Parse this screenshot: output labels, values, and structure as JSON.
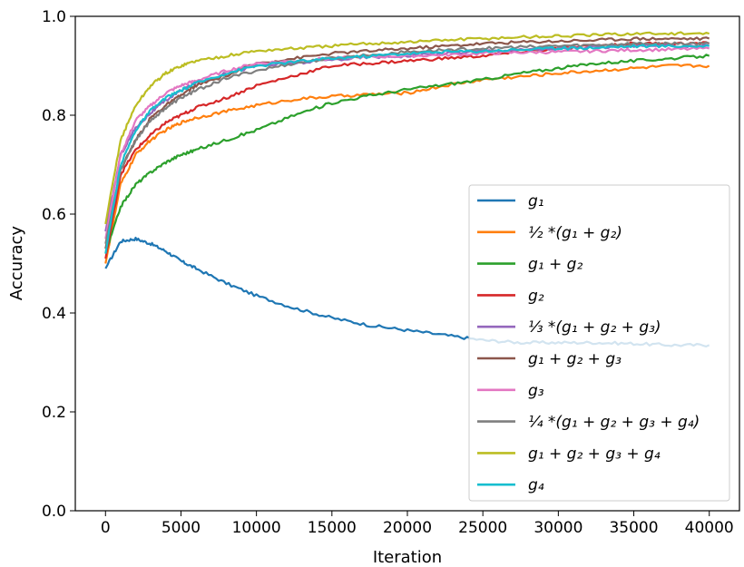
{
  "chart_data": {
    "type": "line",
    "title": "",
    "xlabel": "Iteration",
    "ylabel": "Accuracy",
    "xlim": [
      -2000,
      42000
    ],
    "ylim": [
      0.0,
      1.0
    ],
    "xticks": [
      0,
      5000,
      10000,
      15000,
      20000,
      25000,
      30000,
      35000,
      40000
    ],
    "xtick_labels": [
      "0",
      "5000",
      "10000",
      "15000",
      "20000",
      "25000",
      "30000",
      "35000",
      "40000"
    ],
    "yticks": [
      0.0,
      0.2,
      0.4,
      0.6,
      0.8,
      1.0
    ],
    "ytick_labels": [
      "0.0",
      "0.2",
      "0.4",
      "0.6",
      "0.8",
      "1.0"
    ],
    "grid": false,
    "legend_position": "center-right",
    "x": [
      0,
      1000,
      2000,
      3000,
      4000,
      5000,
      6000,
      8000,
      10000,
      12500,
      15000,
      17500,
      20000,
      22500,
      25000,
      27500,
      30000,
      32500,
      35000,
      37500,
      40000
    ],
    "series": [
      {
        "name": "g1",
        "label": "g₁",
        "color": "#1f77b4",
        "values": [
          0.49,
          0.545,
          0.55,
          0.54,
          0.525,
          0.505,
          0.49,
          0.46,
          0.435,
          0.41,
          0.39,
          0.375,
          0.365,
          0.355,
          0.345,
          0.34,
          0.34,
          0.34,
          0.338,
          0.335,
          0.335
        ]
      },
      {
        "name": "half_g1_g2",
        "label": "½ *(g₁ + g₂)",
        "color": "#ff7f0e",
        "values": [
          0.5,
          0.66,
          0.72,
          0.75,
          0.77,
          0.785,
          0.795,
          0.808,
          0.82,
          0.832,
          0.838,
          0.842,
          0.845,
          0.86,
          0.872,
          0.878,
          0.885,
          0.89,
          0.895,
          0.9,
          0.9
        ]
      },
      {
        "name": "g1_plus_g2",
        "label": "g₁ + g₂",
        "color": "#2ca02c",
        "values": [
          0.52,
          0.615,
          0.66,
          0.685,
          0.705,
          0.72,
          0.73,
          0.75,
          0.77,
          0.8,
          0.825,
          0.84,
          0.852,
          0.862,
          0.872,
          0.885,
          0.895,
          0.905,
          0.91,
          0.915,
          0.92
        ]
      },
      {
        "name": "g2",
        "label": "g₂",
        "color": "#d62728",
        "values": [
          0.51,
          0.68,
          0.73,
          0.76,
          0.785,
          0.8,
          0.815,
          0.835,
          0.86,
          0.88,
          0.9,
          0.905,
          0.91,
          0.915,
          0.92,
          0.928,
          0.935,
          0.94,
          0.945,
          0.945,
          0.945
        ]
      },
      {
        "name": "third_g1_g2_g3",
        "label": "⅓ *(g₁ + g₂ + g₃)",
        "color": "#9467bd",
        "values": [
          0.565,
          0.72,
          0.775,
          0.805,
          0.83,
          0.85,
          0.865,
          0.885,
          0.9,
          0.905,
          0.912,
          0.918,
          0.92,
          0.925,
          0.93,
          0.932,
          0.935,
          0.937,
          0.94,
          0.94,
          0.94
        ]
      },
      {
        "name": "g1_g2_g3",
        "label": "g₁ + g₂ + g₃",
        "color": "#8c564b",
        "values": [
          0.53,
          0.69,
          0.75,
          0.795,
          0.82,
          0.84,
          0.86,
          0.88,
          0.905,
          0.915,
          0.925,
          0.93,
          0.935,
          0.94,
          0.945,
          0.948,
          0.95,
          0.952,
          0.955,
          0.955,
          0.955
        ]
      },
      {
        "name": "g3",
        "label": "g₃",
        "color": "#e377c2",
        "values": [
          0.55,
          0.72,
          0.79,
          0.82,
          0.845,
          0.86,
          0.87,
          0.89,
          0.905,
          0.91,
          0.915,
          0.918,
          0.92,
          0.922,
          0.925,
          0.927,
          0.928,
          0.93,
          0.932,
          0.933,
          0.935
        ]
      },
      {
        "name": "quarter_g1_g2_g3_g4",
        "label": "¼ *(g₁ + g₂ + g₃ + g₄)",
        "color": "#7f7f7f",
        "values": [
          0.54,
          0.69,
          0.75,
          0.79,
          0.815,
          0.835,
          0.85,
          0.875,
          0.89,
          0.905,
          0.915,
          0.922,
          0.928,
          0.932,
          0.935,
          0.938,
          0.94,
          0.942,
          0.945,
          0.945,
          0.945
        ]
      },
      {
        "name": "g1_g2_g3_g4",
        "label": "g₁ + g₂ + g₃ + g₄",
        "color": "#bcbd22",
        "values": [
          0.58,
          0.75,
          0.82,
          0.86,
          0.885,
          0.9,
          0.91,
          0.92,
          0.93,
          0.935,
          0.94,
          0.945,
          0.948,
          0.952,
          0.955,
          0.958,
          0.96,
          0.962,
          0.965,
          0.965,
          0.965
        ]
      },
      {
        "name": "g4",
        "label": "g₄",
        "color": "#17becf",
        "values": [
          0.52,
          0.7,
          0.77,
          0.81,
          0.835,
          0.85,
          0.865,
          0.885,
          0.9,
          0.908,
          0.915,
          0.92,
          0.925,
          0.928,
          0.93,
          0.933,
          0.935,
          0.937,
          0.94,
          0.94,
          0.94
        ]
      }
    ]
  }
}
